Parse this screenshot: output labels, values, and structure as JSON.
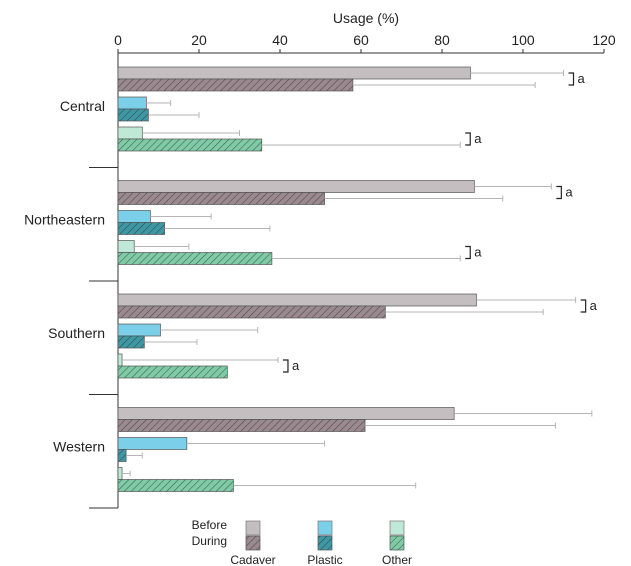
{
  "chart_data": {
    "type": "bar",
    "orientation": "horizontal",
    "xlabel": "Usage (%)",
    "xlim": [
      0,
      120
    ],
    "xticks": [
      0,
      20,
      40,
      60,
      80,
      100,
      120
    ],
    "categories": [
      "Central",
      "Northeastern",
      "Southern",
      "Western"
    ],
    "series": [
      {
        "material": "Cadaver",
        "period": "Before",
        "color": "#c4bec0",
        "hatch": false,
        "values": [
          87,
          88,
          88.5,
          83
        ],
        "errors": [
          23,
          19,
          24.5,
          34
        ]
      },
      {
        "material": "Cadaver",
        "period": "During",
        "color": "#9a8a8f",
        "hatch": true,
        "values": [
          58,
          51,
          66,
          61
        ],
        "errors": [
          45,
          44,
          39,
          47
        ]
      },
      {
        "material": "Plastic",
        "period": "Before",
        "color": "#7ccfe8",
        "hatch": false,
        "values": [
          7,
          8,
          10.5,
          17
        ],
        "errors": [
          6,
          15,
          24,
          34
        ]
      },
      {
        "material": "Plastic",
        "period": "During",
        "color": "#3d98a4",
        "hatch": true,
        "values": [
          7.5,
          11.5,
          6.5,
          2
        ],
        "errors": [
          12.5,
          26,
          13,
          4
        ]
      },
      {
        "material": "Other",
        "period": "Before",
        "color": "#bfe8d6",
        "hatch": false,
        "values": [
          6,
          4,
          1,
          1
        ],
        "errors": [
          24,
          13.5,
          38.5,
          2
        ]
      },
      {
        "material": "Other",
        "period": "During",
        "color": "#7ecba6",
        "hatch": true,
        "values": [
          35.5,
          38,
          27,
          28.5
        ],
        "errors": [
          49,
          46.5,
          0,
          45
        ]
      }
    ],
    "significance": [
      {
        "category": "Central",
        "material": "Cadaver",
        "label": "a"
      },
      {
        "category": "Central",
        "material": "Other",
        "label": "a"
      },
      {
        "category": "Northeastern",
        "material": "Cadaver",
        "label": "a"
      },
      {
        "category": "Northeastern",
        "material": "Other",
        "label": "a"
      },
      {
        "category": "Southern",
        "material": "Cadaver",
        "label": "a"
      },
      {
        "category": "Southern",
        "material": "Other",
        "label": "a"
      }
    ],
    "legend": {
      "placement": "bottom",
      "row_labels": [
        "Before",
        "During"
      ],
      "materials": [
        {
          "name": "Cadaver",
          "before_color": "#c4bec0",
          "during_color": "#9a8a8f"
        },
        {
          "name": "Plastic",
          "before_color": "#7ccfe8",
          "during_color": "#3d98a4"
        },
        {
          "name": "Other",
          "before_color": "#bfe8d6",
          "during_color": "#7ecba6"
        }
      ]
    }
  }
}
